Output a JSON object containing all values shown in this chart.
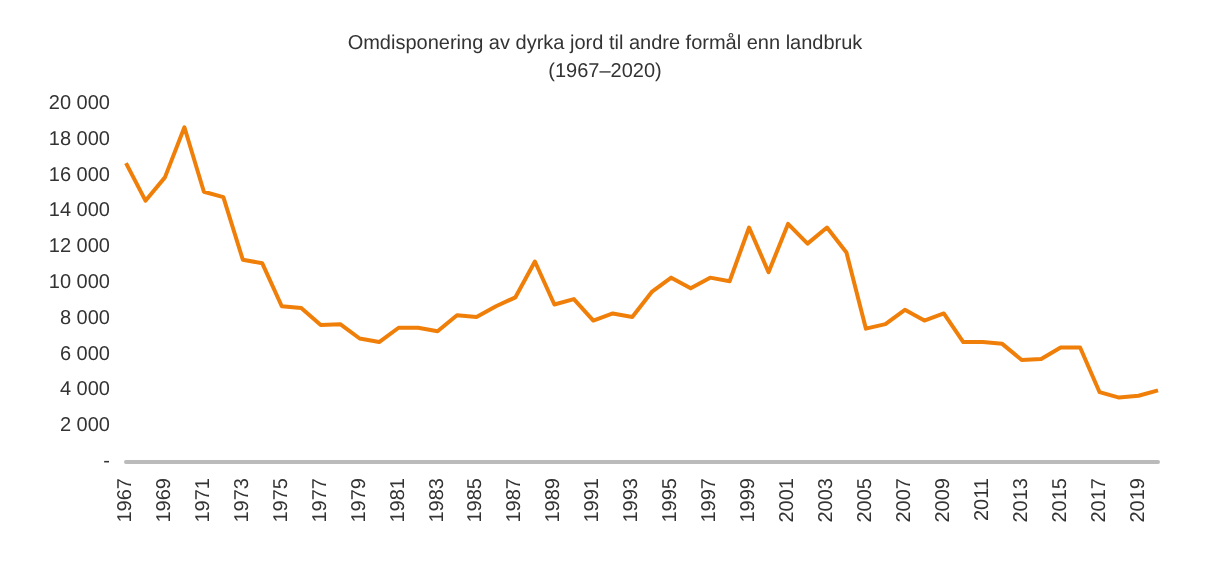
{
  "chart_data": {
    "type": "line",
    "title": "Omdisponering av dyrka jord til andre formål enn landbruk",
    "subtitle": "(1967–2020)",
    "categories": [
      "1967",
      null,
      "1969",
      null,
      "1971",
      null,
      "1973",
      null,
      "1975",
      null,
      "1977",
      null,
      "1979",
      null,
      "1981",
      null,
      "1983",
      null,
      "1985",
      null,
      "1987",
      null,
      "1989",
      null,
      "1991",
      null,
      "1993",
      null,
      "1995",
      null,
      "1997",
      null,
      "1999",
      null,
      "2001",
      null,
      "2003",
      null,
      "2005",
      null,
      "2007",
      null,
      "2009",
      null,
      "2011",
      null,
      "2013",
      null,
      "2015",
      null,
      "2017",
      null,
      "2019",
      null
    ],
    "series": [
      {
        "color": "#f07f0a",
        "values": [
          16700,
          14600,
          15900,
          18700,
          15100,
          14800,
          11300,
          11100,
          8700,
          8600,
          7650,
          7700,
          6900,
          6700,
          7500,
          7500,
          7300,
          8200,
          8100,
          8700,
          9200,
          11200,
          8800,
          9100,
          7900,
          8300,
          8100,
          9500,
          10300,
          9700,
          10300,
          10100,
          13100,
          10600,
          13300,
          12200,
          13100,
          11700,
          7450,
          7700,
          8500,
          7900,
          8300,
          6700,
          6700,
          6600,
          5700,
          5750,
          6400,
          6400,
          3900,
          3600,
          3700,
          4000
        ]
      }
    ],
    "ylim": [
      0,
      20000
    ],
    "yticks": [
      {
        "value": 0,
        "label": "-"
      },
      {
        "value": 2000,
        "label": "2 000"
      },
      {
        "value": 4000,
        "label": "4 000"
      },
      {
        "value": 6000,
        "label": "6 000"
      },
      {
        "value": 8000,
        "label": "8 000"
      },
      {
        "value": 10000,
        "label": "10 000"
      },
      {
        "value": 12000,
        "label": "12 000"
      },
      {
        "value": 14000,
        "label": "14 000"
      },
      {
        "value": 16000,
        "label": "16 000"
      },
      {
        "value": 18000,
        "label": "18 000"
      },
      {
        "value": 20000,
        "label": "20 000"
      }
    ],
    "grid": false,
    "marker": "none",
    "line_style": "solid"
  }
}
